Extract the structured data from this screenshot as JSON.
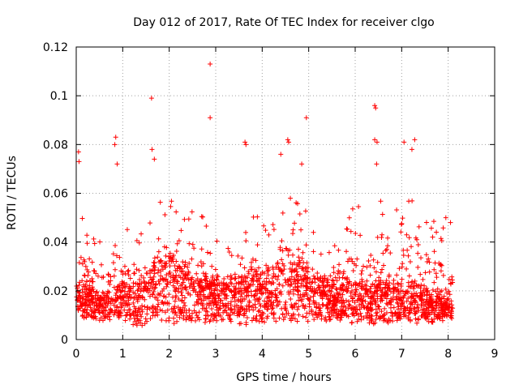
{
  "chart_data": {
    "type": "scatter",
    "title": "Day 012 of 2017, Rate Of TEC Index for receiver clgo",
    "xlabel": "GPS time / hours",
    "ylabel": "ROTI / TECUs",
    "xlim": [
      0,
      9
    ],
    "ylim": [
      0,
      0.12
    ],
    "x_ticks": [
      "0",
      "1",
      "2",
      "3",
      "4",
      "5",
      "6",
      "7",
      "8",
      "9"
    ],
    "y_ticks": [
      "0",
      "0.02",
      "0.04",
      "0.06",
      "0.08",
      "0.1",
      "0.12"
    ],
    "grid": true,
    "legend": "none",
    "marker": "plus",
    "color": "#ff0000",
    "point_count_approx": 2400,
    "notable_points": [
      {
        "x": 2.88,
        "y": 0.113
      },
      {
        "x": 1.62,
        "y": 0.099
      },
      {
        "x": 6.42,
        "y": 0.096
      },
      {
        "x": 6.44,
        "y": 0.095
      },
      {
        "x": 2.88,
        "y": 0.091
      },
      {
        "x": 4.95,
        "y": 0.091
      },
      {
        "x": 0.85,
        "y": 0.083
      },
      {
        "x": 0.83,
        "y": 0.08
      },
      {
        "x": 1.63,
        "y": 0.078
      },
      {
        "x": 0.05,
        "y": 0.077
      },
      {
        "x": 1.68,
        "y": 0.074
      },
      {
        "x": 0.06,
        "y": 0.073
      },
      {
        "x": 0.88,
        "y": 0.072
      },
      {
        "x": 3.63,
        "y": 0.081
      },
      {
        "x": 3.65,
        "y": 0.08
      },
      {
        "x": 4.55,
        "y": 0.082
      },
      {
        "x": 4.57,
        "y": 0.081
      },
      {
        "x": 4.4,
        "y": 0.076
      },
      {
        "x": 4.85,
        "y": 0.072
      },
      {
        "x": 6.42,
        "y": 0.082
      },
      {
        "x": 6.47,
        "y": 0.081
      },
      {
        "x": 6.46,
        "y": 0.072
      },
      {
        "x": 7.05,
        "y": 0.081
      },
      {
        "x": 7.28,
        "y": 0.082
      },
      {
        "x": 7.22,
        "y": 0.078
      },
      {
        "x": 7.95,
        "y": 0.05
      },
      {
        "x": 8.05,
        "y": 0.048
      }
    ],
    "envelope": {
      "hours": [
        0.0,
        0.25,
        0.5,
        0.75,
        1.0,
        1.25,
        1.5,
        1.75,
        2.0,
        2.25,
        2.5,
        2.75,
        3.0,
        3.25,
        3.5,
        3.75,
        4.0,
        4.25,
        4.5,
        4.75,
        5.0,
        5.25,
        5.5,
        5.75,
        6.0,
        6.25,
        6.5,
        6.75,
        7.0,
        7.25,
        7.5,
        7.75,
        8.0,
        8.1
      ],
      "typical": [
        0.016,
        0.015,
        0.013,
        0.014,
        0.016,
        0.013,
        0.017,
        0.02,
        0.022,
        0.019,
        0.018,
        0.017,
        0.016,
        0.015,
        0.016,
        0.018,
        0.017,
        0.019,
        0.02,
        0.022,
        0.018,
        0.016,
        0.015,
        0.015,
        0.016,
        0.015,
        0.016,
        0.015,
        0.015,
        0.016,
        0.014,
        0.013,
        0.012,
        0.012
      ],
      "upper": [
        0.055,
        0.048,
        0.04,
        0.042,
        0.05,
        0.038,
        0.055,
        0.058,
        0.06,
        0.048,
        0.055,
        0.05,
        0.045,
        0.04,
        0.052,
        0.055,
        0.048,
        0.05,
        0.058,
        0.06,
        0.052,
        0.04,
        0.042,
        0.045,
        0.058,
        0.05,
        0.06,
        0.045,
        0.06,
        0.068,
        0.055,
        0.05,
        0.045,
        0.04
      ],
      "lower": [
        0.008,
        0.008,
        0.007,
        0.008,
        0.008,
        0.005,
        0.006,
        0.007,
        0.006,
        0.007,
        0.007,
        0.006,
        0.007,
        0.007,
        0.006,
        0.006,
        0.007,
        0.007,
        0.006,
        0.007,
        0.007,
        0.007,
        0.007,
        0.006,
        0.007,
        0.007,
        0.006,
        0.007,
        0.007,
        0.006,
        0.007,
        0.007,
        0.008,
        0.008
      ]
    }
  }
}
